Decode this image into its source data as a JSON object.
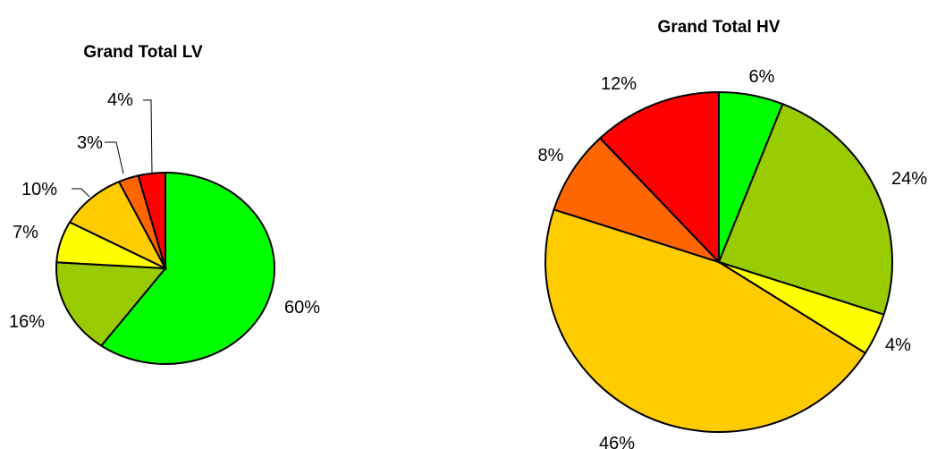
{
  "chart_data": [
    {
      "type": "pie",
      "title": "Grand Total LV",
      "slices": [
        {
          "label": "60%",
          "value": 60,
          "color": "#00FF00"
        },
        {
          "label": "16%",
          "value": 16,
          "color": "#99CC00"
        },
        {
          "label": "7%",
          "value": 7,
          "color": "#FFFF00"
        },
        {
          "label": "10%",
          "value": 10,
          "color": "#FFCC00"
        },
        {
          "label": "3%",
          "value": 3,
          "color": "#FF6600"
        },
        {
          "label": "4%",
          "value": 4,
          "color": "#FF0000"
        }
      ]
    },
    {
      "type": "pie",
      "title": "Grand Total HV",
      "slices": [
        {
          "label": "6%",
          "value": 6,
          "color": "#00FF00"
        },
        {
          "label": "24%",
          "value": 24,
          "color": "#99CC00"
        },
        {
          "label": "4%",
          "value": 4,
          "color": "#FFFF00"
        },
        {
          "label": "46%",
          "value": 46,
          "color": "#FFCC00"
        },
        {
          "label": "8%",
          "value": 8,
          "color": "#FF6600"
        },
        {
          "label": "12%",
          "value": 12,
          "color": "#FF0000"
        }
      ]
    }
  ]
}
